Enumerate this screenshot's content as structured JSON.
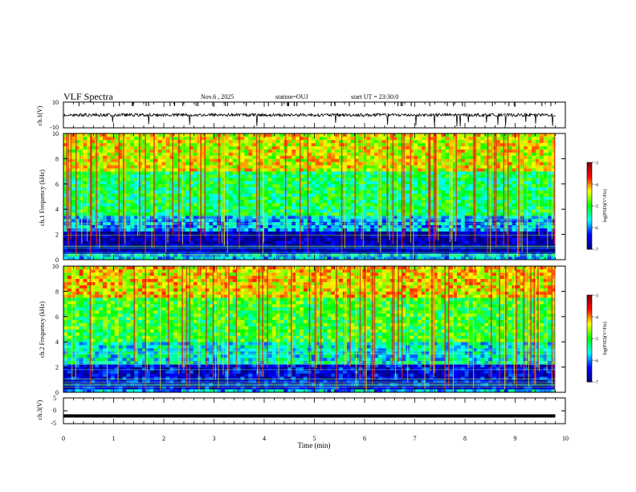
{
  "header": {
    "title": "VLF Spectra",
    "date": "Nov.6 , 2025",
    "station": "station=OUJ",
    "start": "start UT = 23:30:0"
  },
  "chart_data": [
    {
      "id": "ch1",
      "type": "line",
      "ylabel": "ch.1(V)",
      "ylim": [
        -10,
        10
      ],
      "ytick_labels": [
        "10",
        "-10"
      ],
      "baseline": 0,
      "description_values": "noisy baseline near 0 V with sparse negative spikes"
    },
    {
      "id": "spec1",
      "type": "heatmap",
      "ylabel": "ch.1 Frequency (kHz)",
      "ylim": [
        0,
        10
      ],
      "yticks": [
        0,
        2,
        4,
        6,
        8,
        10
      ],
      "colorbar": {
        "label": "log(PSD)(V²/Hz)",
        "ticks": [
          -3,
          -4,
          -5,
          -6,
          -7
        ],
        "range": [
          -7,
          -3
        ]
      },
      "bands_khz": [
        {
          "from": 0.4,
          "to": 2.2,
          "level": -6.8
        },
        {
          "from": 2.2,
          "to": 3.4,
          "level": -5.9
        },
        {
          "from": 3.4,
          "to": 7.0,
          "level": -5.2
        },
        {
          "from": 7.0,
          "to": 10,
          "level": -4.4
        }
      ]
    },
    {
      "id": "spec2",
      "type": "heatmap",
      "ylabel": "ch.2 Frequency (kHz)",
      "ylim": [
        0,
        10
      ],
      "yticks": [
        0,
        2,
        4,
        6,
        8,
        10
      ],
      "colorbar": {
        "label": "log(PSD)(V²/Hz)",
        "ticks": [
          -3,
          -4,
          -5,
          -6,
          -7
        ],
        "range": [
          -7,
          -3
        ]
      },
      "bands_khz": [
        {
          "from": 0.3,
          "to": 2.2,
          "level": -6.5
        },
        {
          "from": 2.2,
          "to": 4.0,
          "level": -5.6
        },
        {
          "from": 4.0,
          "to": 7.5,
          "level": -5.0
        },
        {
          "from": 7.5,
          "to": 10,
          "level": -4.3
        }
      ]
    },
    {
      "id": "ch3",
      "type": "line",
      "ylabel": "ch.3(V)",
      "ylim": [
        -5,
        5
      ],
      "ytick_labels": [
        "5",
        "0",
        "-5"
      ],
      "baseline": -2
    }
  ],
  "xaxis": {
    "label": "Time (min)",
    "xlim": [
      0,
      10
    ],
    "ticks": [
      "0",
      "1",
      "2",
      "3",
      "4",
      "5",
      "6",
      "7",
      "8",
      "9",
      "10"
    ],
    "data_end": 9.8
  },
  "colors": {
    "scale": [
      "#000080",
      "#0000ff",
      "#00ffff",
      "#00ff00",
      "#ffff00",
      "#ff0000",
      "#800000"
    ]
  }
}
